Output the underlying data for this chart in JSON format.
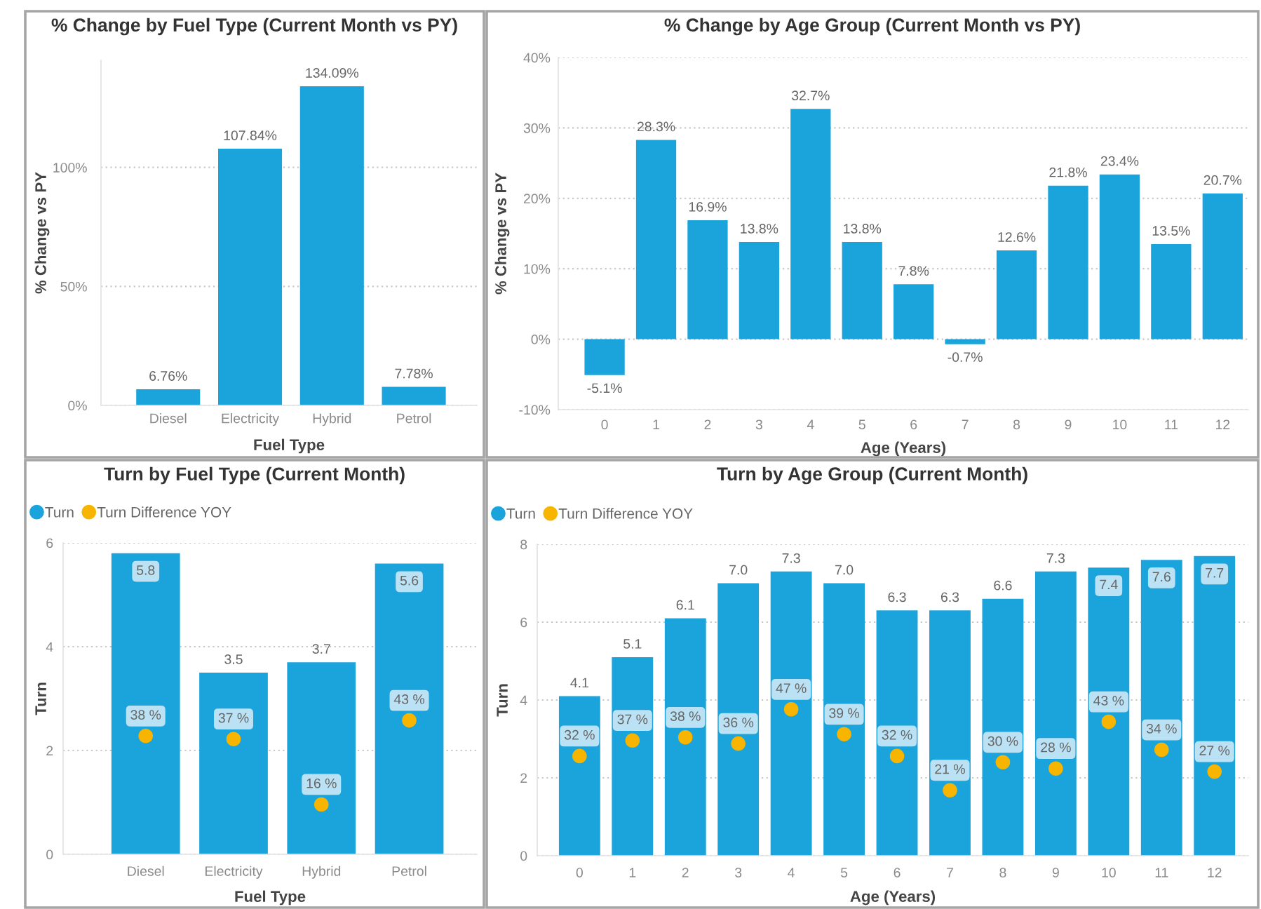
{
  "chart_data": [
    {
      "type": "bar",
      "title": "% Change by Fuel Type (Current Month vs PY)",
      "xlabel": "Fuel Type",
      "ylabel": "% Change vs PY",
      "categories": [
        "Diesel",
        "Electricity",
        "Hybrid",
        "Petrol"
      ],
      "values": [
        6.76,
        107.84,
        134.09,
        7.78
      ],
      "value_labels": [
        "6.76%",
        "107.84%",
        "134.09%",
        "7.78%"
      ],
      "color": "#1ba3dc",
      "ylim": [
        0,
        145
      ],
      "yticks": [
        {
          "value": 0,
          "label": "0%"
        },
        {
          "value": 50,
          "label": "50%"
        },
        {
          "value": 100,
          "label": "100%"
        }
      ],
      "grid": "y"
    },
    {
      "type": "bar",
      "title": "% Change by Age Group (Current Month vs PY)",
      "xlabel": "Age (Years)",
      "ylabel": "% Change vs PY",
      "categories": [
        "0",
        "1",
        "2",
        "3",
        "4",
        "5",
        "6",
        "7",
        "8",
        "9",
        "10",
        "11",
        "12"
      ],
      "values": [
        -5.1,
        28.3,
        16.9,
        13.8,
        32.7,
        13.8,
        7.8,
        -0.7,
        12.6,
        21.8,
        23.4,
        13.5,
        20.7
      ],
      "value_labels": [
        "-5.1%",
        "28.3%",
        "16.9%",
        "13.8%",
        "32.7%",
        "13.8%",
        "7.8%",
        "-0.7%",
        "12.6%",
        "21.8%",
        "23.4%",
        "13.5%",
        "20.7%"
      ],
      "color": "#1ba3dc",
      "ylim": [
        -10,
        40
      ],
      "yticks": [
        {
          "value": -10,
          "label": "-10%"
        },
        {
          "value": 0,
          "label": "0%"
        },
        {
          "value": 10,
          "label": "10%"
        },
        {
          "value": 20,
          "label": "20%"
        },
        {
          "value": 30,
          "label": "30%"
        },
        {
          "value": 40,
          "label": "40%"
        }
      ],
      "grid": "y"
    },
    {
      "type": "bar",
      "title": "Turn by Fuel Type (Current Month)",
      "xlabel": "Fuel Type",
      "ylabel": "Turn",
      "categories": [
        "Diesel",
        "Electricity",
        "Hybrid",
        "Petrol"
      ],
      "series": [
        {
          "name": "Turn",
          "color": "#1ba3dc",
          "values": [
            5.8,
            3.5,
            3.7,
            5.6
          ],
          "value_labels": [
            "5.8",
            "3.5",
            "3.7",
            "5.6"
          ]
        },
        {
          "name": "Turn Difference YOY",
          "type": "scatter",
          "axis": "y2",
          "marker": "circle",
          "color": "#f7b500",
          "values": [
            38,
            37,
            16,
            43
          ],
          "value_labels": [
            "38 %",
            "37 %",
            "16 %",
            "43 %"
          ]
        }
      ],
      "ylim": [
        0,
        6
      ],
      "yticks": [
        0,
        2,
        4,
        6
      ],
      "y2lim": [
        0,
        100
      ],
      "grid": "y",
      "legend": "top left"
    },
    {
      "type": "bar",
      "title": "Turn by Age Group (Current Month)",
      "xlabel": "Age (Years)",
      "ylabel": "Turn",
      "categories": [
        "0",
        "1",
        "2",
        "3",
        "4",
        "5",
        "6",
        "7",
        "8",
        "9",
        "10",
        "11",
        "12"
      ],
      "series": [
        {
          "name": "Turn",
          "color": "#1ba3dc",
          "values": [
            4.1,
            5.1,
            6.1,
            7.0,
            7.3,
            7.0,
            6.3,
            6.3,
            6.6,
            7.3,
            7.4,
            7.6,
            7.7
          ],
          "value_labels": [
            "4.1",
            "5.1",
            "6.1",
            "7.0",
            "7.3",
            "7.0",
            "6.3",
            "6.3",
            "6.6",
            "7.3",
            "7.4",
            "7.6",
            "7.7"
          ]
        },
        {
          "name": "Turn Difference YOY",
          "type": "scatter",
          "axis": "y2",
          "marker": "circle",
          "color": "#f7b500",
          "values": [
            32,
            37,
            38,
            36,
            47,
            39,
            32,
            21,
            30,
            28,
            43,
            34,
            27
          ],
          "value_labels": [
            "32 %",
            "37 %",
            "38 %",
            "36 %",
            "47 %",
            "39 %",
            "32 %",
            "21 %",
            "30 %",
            "28 %",
            "43 %",
            "34 %",
            "27 %"
          ]
        }
      ],
      "ylim": [
        0,
        8
      ],
      "yticks": [
        0,
        2,
        4,
        6,
        8
      ],
      "y2lim": [
        0,
        100
      ],
      "grid": "y",
      "legend": "top left"
    }
  ]
}
